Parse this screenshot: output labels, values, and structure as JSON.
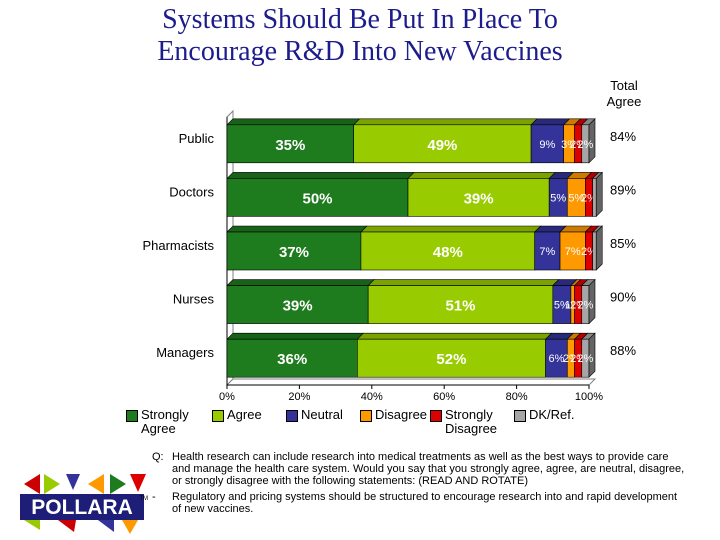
{
  "title_line1": "Systems Should Be Put In Place To",
  "title_line2": "Encourage R&D Into New Vaccines",
  "total_agree_header": [
    "Total",
    "Agree"
  ],
  "chart_data": {
    "type": "bar",
    "orientation": "horizontal",
    "stacked": true,
    "categories": [
      "Public",
      "Doctors",
      "Pharmacists",
      "Nurses",
      "Managers"
    ],
    "series": [
      {
        "name": "Strongly Agree",
        "color": "#1e7b1e",
        "values": [
          35,
          50,
          37,
          39,
          36
        ],
        "labels": [
          "35%",
          "50%",
          "37%",
          "39%",
          "36%"
        ]
      },
      {
        "name": "Agree",
        "color": "#99cc00",
        "values": [
          49,
          39,
          48,
          51,
          52
        ],
        "labels": [
          "49%",
          "39%",
          "48%",
          "51%",
          "52%"
        ]
      },
      {
        "name": "Neutral",
        "color": "#333399",
        "values": [
          9,
          5,
          7,
          5,
          6
        ],
        "labels": [
          "9%",
          "5%",
          "7%",
          "5%",
          "6%"
        ]
      },
      {
        "name": "Disagree",
        "color": "#ff9900",
        "values": [
          3,
          5,
          7,
          1,
          2
        ],
        "labels": [
          "3%",
          "5%",
          "7%",
          "1%",
          "2%"
        ]
      },
      {
        "name": "Strongly Disagree",
        "color": "#dd0000",
        "values": [
          2,
          2,
          2,
          2,
          2
        ],
        "labels": [
          "2%",
          "2%",
          "2%",
          "2%",
          "2%"
        ]
      },
      {
        "name": "DK/Ref.",
        "color": "#a6a6a6",
        "values": [
          2,
          1,
          1,
          2,
          2
        ],
        "labels": [
          "2%",
          "",
          "",
          "2%",
          "2%"
        ]
      }
    ],
    "total_agree": [
      "84%",
      "89%",
      "85%",
      "90%",
      "88%"
    ],
    "xlim": [
      0,
      100
    ],
    "xticks": [
      "0%",
      "20%",
      "40%",
      "60%",
      "80%",
      "100%"
    ],
    "legend_position": "bottom"
  },
  "question": {
    "label": "Q:",
    "text": "Health research can include research into medical treatments as well as the best ways to provide care and manage the health care system. Would you say that you strongly agree, agree, are neutral, disagree, or strongly disagree with the following statements: (READ AND ROTATE)"
  },
  "statement": {
    "label": "-",
    "text": "Regulatory and pricing systems should be structured to encourage research into and rapid development of new vaccines."
  },
  "logo": {
    "text": "POLLARA",
    "mark": "TM"
  }
}
